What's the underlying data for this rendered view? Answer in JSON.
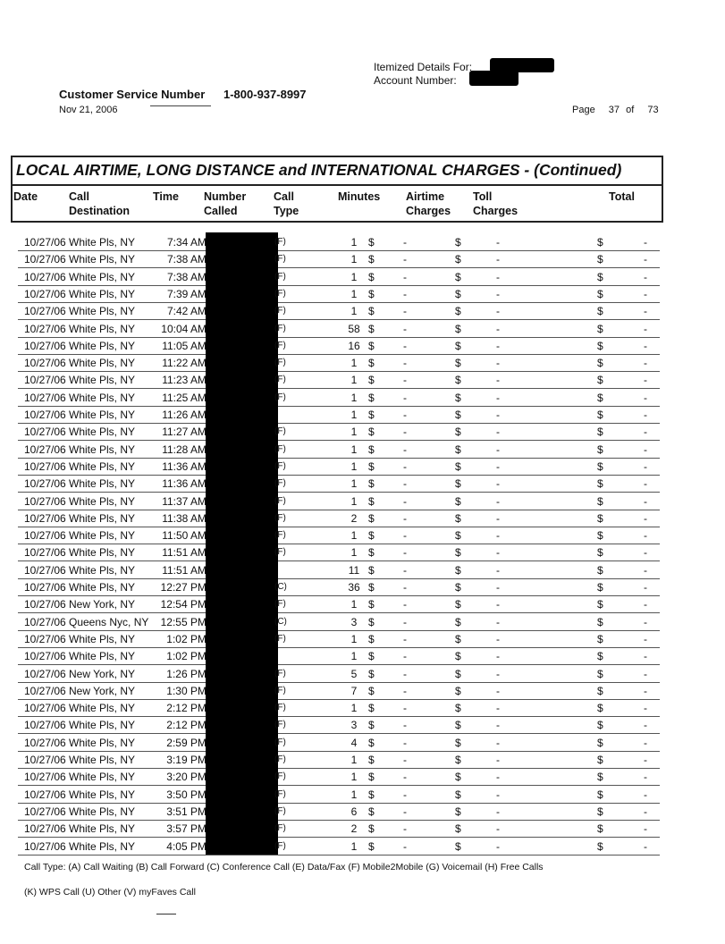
{
  "header": {
    "itemized_label": "Itemized Details For:",
    "account_label": "Account Number:",
    "customer_service_label": "Customer Service Number",
    "customer_service_number": "1-800-937-8997",
    "date": "Nov 21, 2006",
    "page_label": "Page",
    "page_current": "37",
    "page_of": "of",
    "page_total": "73"
  },
  "table": {
    "title": "LOCAL AIRTIME, LONG DISTANCE and INTERNATIONAL CHARGES  - (Continued)",
    "columns": [
      {
        "line1": "Date",
        "line2": ""
      },
      {
        "line1": "Call",
        "line2": "Destination"
      },
      {
        "line1": "Time",
        "line2": ""
      },
      {
        "line1": "Number",
        "line2": "Called"
      },
      {
        "line1": "Call",
        "line2": "Type"
      },
      {
        "line1": "Minutes",
        "line2": ""
      },
      {
        "line1": "Airtime",
        "line2": "Charges"
      },
      {
        "line1": "Toll",
        "line2": "Charges"
      },
      {
        "line1": "Total",
        "line2": ""
      }
    ],
    "currency": "$",
    "empty_charge": "-",
    "rows": [
      {
        "date": "10/27/06",
        "dest": "White Pls, NY",
        "time": "7:34 AM",
        "type": "(F)",
        "minutes": "1"
      },
      {
        "date": "10/27/06",
        "dest": "White Pls, NY",
        "time": "7:38 AM",
        "type": "(F)",
        "minutes": "1"
      },
      {
        "date": "10/27/06",
        "dest": "White Pls, NY",
        "time": "7:38 AM",
        "type": "(F)",
        "minutes": "1"
      },
      {
        "date": "10/27/06",
        "dest": "White Pls, NY",
        "time": "7:39 AM",
        "type": "(F)",
        "minutes": "1"
      },
      {
        "date": "10/27/06",
        "dest": "White Pls, NY",
        "time": "7:42 AM",
        "type": "(F)",
        "minutes": "1"
      },
      {
        "date": "10/27/06",
        "dest": "White Pls, NY",
        "time": "10:04 AM",
        "type": "(F)",
        "minutes": "58"
      },
      {
        "date": "10/27/06",
        "dest": "White Pls, NY",
        "time": "11:05 AM",
        "type": "(F)",
        "minutes": "16"
      },
      {
        "date": "10/27/06",
        "dest": "White Pls, NY",
        "time": "11:22 AM",
        "type": "(F)",
        "minutes": "1"
      },
      {
        "date": "10/27/06",
        "dest": "White Pls, NY",
        "time": "11:23 AM",
        "type": "(F)",
        "minutes": "1"
      },
      {
        "date": "10/27/06",
        "dest": "White Pls, NY",
        "time": "11:25 AM",
        "type": "(F)",
        "minutes": "1"
      },
      {
        "date": "10/27/06",
        "dest": "White Pls, NY",
        "time": "11:26 AM",
        "type": "",
        "minutes": "1"
      },
      {
        "date": "10/27/06",
        "dest": "White Pls, NY",
        "time": "11:27 AM",
        "type": "(F)",
        "minutes": "1"
      },
      {
        "date": "10/27/06",
        "dest": "White Pls, NY",
        "time": "11:28 AM",
        "type": "(F)",
        "minutes": "1"
      },
      {
        "date": "10/27/06",
        "dest": "White Pls, NY",
        "time": "11:36 AM",
        "type": "(F)",
        "minutes": "1"
      },
      {
        "date": "10/27/06",
        "dest": "White Pls, NY",
        "time": "11:36 AM",
        "type": "(F)",
        "minutes": "1"
      },
      {
        "date": "10/27/06",
        "dest": "White Pls, NY",
        "time": "11:37 AM",
        "type": "(F)",
        "minutes": "1"
      },
      {
        "date": "10/27/06",
        "dest": "White Pls, NY",
        "time": "11:38 AM",
        "type": "(F)",
        "minutes": "2"
      },
      {
        "date": "10/27/06",
        "dest": "White Pls, NY",
        "time": "11:50 AM",
        "type": "(F)",
        "minutes": "1"
      },
      {
        "date": "10/27/06",
        "dest": "White Pls, NY",
        "time": "11:51 AM",
        "type": "(F)",
        "minutes": "1"
      },
      {
        "date": "10/27/06",
        "dest": "White Pls, NY",
        "time": "11:51 AM",
        "type": "",
        "minutes": "11"
      },
      {
        "date": "10/27/06",
        "dest": "White Pls, NY",
        "time": "12:27 PM",
        "type": "(C)",
        "minutes": "36"
      },
      {
        "date": "10/27/06",
        "dest": "New York, NY",
        "time": "12:54 PM",
        "type": "(F)",
        "minutes": "1"
      },
      {
        "date": "10/27/06",
        "dest": "Queens Nyc, NY",
        "time": "12:55 PM",
        "type": "(C)",
        "minutes": "3"
      },
      {
        "date": "10/27/06",
        "dest": "White Pls, NY",
        "time": "1:02 PM",
        "type": "(F)",
        "minutes": "1"
      },
      {
        "date": "10/27/06",
        "dest": "White Pls, NY",
        "time": "1:02 PM",
        "type": "",
        "minutes": "1"
      },
      {
        "date": "10/27/06",
        "dest": "New York, NY",
        "time": "1:26 PM",
        "type": "(F)",
        "minutes": "5"
      },
      {
        "date": "10/27/06",
        "dest": "New York, NY",
        "time": "1:30 PM",
        "type": "(F)",
        "minutes": "7"
      },
      {
        "date": "10/27/06",
        "dest": "White Pls, NY",
        "time": "2:12 PM",
        "type": "(F)",
        "minutes": "1"
      },
      {
        "date": "10/27/06",
        "dest": "White Pls, NY",
        "time": "2:12 PM",
        "type": "(F)",
        "minutes": "3"
      },
      {
        "date": "10/27/06",
        "dest": "White Pls, NY",
        "time": "2:59 PM",
        "type": "(F)",
        "minutes": "4"
      },
      {
        "date": "10/27/06",
        "dest": "White Pls, NY",
        "time": "3:19 PM",
        "type": "(F)",
        "minutes": "1"
      },
      {
        "date": "10/27/06",
        "dest": "White Pls, NY",
        "time": "3:20 PM",
        "type": "(F)",
        "minutes": "1"
      },
      {
        "date": "10/27/06",
        "dest": "White Pls, NY",
        "time": "3:50 PM",
        "type": "(F)",
        "minutes": "1"
      },
      {
        "date": "10/27/06",
        "dest": "White Pls, NY",
        "time": "3:51 PM",
        "type": "(F)",
        "minutes": "6"
      },
      {
        "date": "10/27/06",
        "dest": "White Pls, NY",
        "time": "3:57 PM",
        "type": "(F)",
        "minutes": "2"
      },
      {
        "date": "10/27/06",
        "dest": "White Pls, NY",
        "time": "4:05 PM",
        "type": "(F)",
        "minutes": "1"
      }
    ]
  },
  "footer": {
    "legend_line1": "Call Type: (A) Call Waiting (B) Call Forward (C) Conference Call (E) Data/Fax (F) Mobile2Mobile (G) Voicemail (H) Free Calls",
    "legend_line2": "(K) WPS Call (U) Other (V) myFaves Call"
  }
}
